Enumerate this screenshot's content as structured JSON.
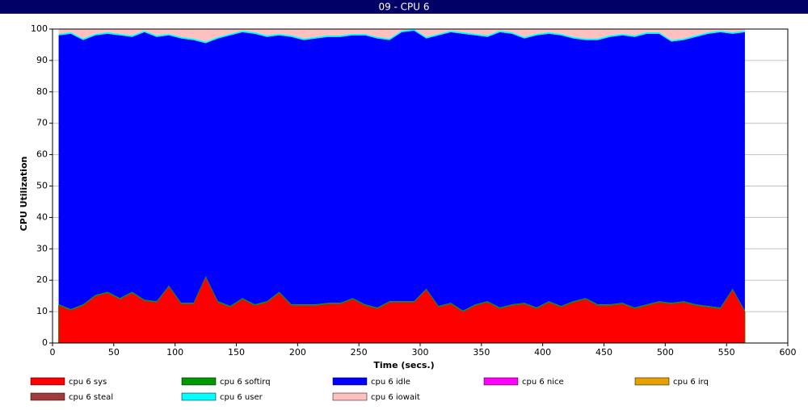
{
  "chart_data": {
    "type": "stacked-area",
    "title": "09 - CPU 6",
    "x_label": "Time (secs.)",
    "y_label": "CPU Utilization",
    "xlim": [
      0,
      600
    ],
    "xticks": [
      0,
      50,
      100,
      150,
      200,
      250,
      300,
      350,
      400,
      450,
      500,
      550,
      600
    ],
    "ylim": [
      0,
      100
    ],
    "yticks": [
      0,
      10,
      20,
      30,
      40,
      50,
      60,
      70,
      80,
      90,
      100
    ],
    "grid": true,
    "x": [
      5,
      15,
      25,
      35,
      45,
      55,
      65,
      75,
      85,
      95,
      105,
      115,
      125,
      135,
      145,
      155,
      165,
      175,
      185,
      195,
      205,
      215,
      225,
      235,
      245,
      255,
      265,
      275,
      285,
      295,
      305,
      315,
      325,
      335,
      345,
      355,
      365,
      375,
      385,
      395,
      405,
      415,
      425,
      435,
      445,
      455,
      465,
      475,
      485,
      495,
      505,
      515,
      525,
      535,
      545,
      555,
      565
    ],
    "series": [
      {
        "name": "cpu 6 sys",
        "color": "#ff0000",
        "values": [
          12,
          10.5,
          12,
          15,
          16,
          14,
          16,
          13.5,
          13,
          18,
          12.5,
          12.5,
          21,
          13,
          11.5,
          14,
          12,
          13,
          16,
          12,
          12,
          12,
          12.5,
          12.5,
          14,
          12,
          11,
          13,
          13,
          13,
          17,
          11.5,
          12.5,
          10,
          12,
          13,
          11,
          12,
          12.5,
          11,
          13,
          11.5,
          13,
          14,
          12,
          12,
          12.5,
          11,
          12,
          13,
          12.5,
          13,
          12,
          11.5,
          11,
          17,
          10
        ]
      },
      {
        "name": "cpu 6 softirq",
        "color": "#009900",
        "values": [
          0.3,
          0.3,
          0.3,
          0.3,
          0.3,
          0.3,
          0.3,
          0.3,
          0.3,
          0.3,
          0.3,
          0.3,
          0.3,
          0.3,
          0.3,
          0.3,
          0.3,
          0.3,
          0.3,
          0.3,
          0.3,
          0.3,
          0.3,
          0.3,
          0.3,
          0.3,
          0.3,
          0.3,
          0.3,
          0.3,
          0.3,
          0.3,
          0.3,
          0.3,
          0.3,
          0.3,
          0.3,
          0.3,
          0.3,
          0.3,
          0.3,
          0.3,
          0.3,
          0.3,
          0.3,
          0.3,
          0.3,
          0.3,
          0.3,
          0.3,
          0.3,
          0.3,
          0.3,
          0.3,
          0.3,
          0.3,
          0.3
        ]
      },
      {
        "name": "cpu 6 idle",
        "color": "#0000ff",
        "values": [
          85.7,
          87.7,
          84.2,
          82.7,
          82.2,
          83.7,
          81.2,
          85.2,
          84.2,
          79.7,
          84.2,
          83.7,
          74.2,
          83.7,
          86.2,
          84.7,
          86.2,
          84.2,
          81.7,
          85.2,
          84.2,
          84.7,
          84.7,
          84.7,
          83.7,
          85.7,
          85.7,
          83.2,
          85.7,
          86.2,
          79.7,
          86.2,
          86.2,
          88.2,
          85.7,
          84.2,
          87.7,
          86.2,
          84.2,
          86.7,
          85.2,
          86.2,
          83.7,
          82.2,
          84.2,
          85.2,
          85.2,
          86.2,
          86.2,
          85.2,
          83.2,
          83.2,
          85.2,
          86.7,
          87.7,
          81.2,
          88.7
        ]
      },
      {
        "name": "cpu 6 nice",
        "color": "#ff00ff",
        "values": [
          0,
          0,
          0,
          0,
          0,
          0,
          0,
          0,
          0,
          0,
          0,
          0,
          0,
          0,
          0,
          0,
          0,
          0,
          0,
          0,
          0,
          0,
          0,
          0,
          0,
          0,
          0,
          0,
          0,
          0,
          0,
          0,
          0,
          0,
          0,
          0,
          0,
          0,
          0,
          0,
          0,
          0,
          0,
          0,
          0,
          0,
          0,
          0,
          0,
          0,
          0,
          0,
          0,
          0,
          0,
          0,
          0
        ]
      },
      {
        "name": "cpu 6 irq",
        "color": "#e6a000",
        "values": [
          0,
          0,
          0,
          0,
          0,
          0,
          0,
          0,
          0,
          0,
          0,
          0,
          0,
          0,
          0,
          0,
          0,
          0,
          0,
          0,
          0,
          0,
          0,
          0,
          0,
          0,
          0,
          0,
          0,
          0,
          0,
          0,
          0,
          0,
          0,
          0,
          0,
          0,
          0,
          0,
          0,
          0,
          0,
          0,
          0,
          0,
          0,
          0,
          0,
          0,
          0,
          0,
          0,
          0,
          0,
          0,
          0
        ]
      },
      {
        "name": "cpu 6 steal",
        "color": "#a03c3c",
        "values": [
          0,
          0,
          0,
          0,
          0,
          0,
          0,
          0,
          0,
          0,
          0,
          0,
          0,
          0,
          0,
          0,
          0,
          0,
          0,
          0,
          0,
          0,
          0,
          0,
          0,
          0,
          0,
          0,
          0,
          0,
          0,
          0,
          0,
          0,
          0,
          0,
          0,
          0,
          0,
          0,
          0,
          0,
          0,
          0,
          0,
          0,
          0,
          0,
          0,
          0,
          0,
          0,
          0,
          0,
          0,
          0,
          0
        ]
      },
      {
        "name": "cpu 6 user",
        "color": "#00ffff",
        "values": [
          0.5,
          0.5,
          0.5,
          0.5,
          0.5,
          0.5,
          0.5,
          0.5,
          0.5,
          0.5,
          0.5,
          0.5,
          0.5,
          0.5,
          0.5,
          0.5,
          0.5,
          0.5,
          0.5,
          0.5,
          0.5,
          0.5,
          0.5,
          0.5,
          0.5,
          0.5,
          0.5,
          0.5,
          0.5,
          0.5,
          0.5,
          0.5,
          0.5,
          0.5,
          0.5,
          0.5,
          0.5,
          0.5,
          0.5,
          0.5,
          0.5,
          0.5,
          0.5,
          0.5,
          0.5,
          0.5,
          0.5,
          0.5,
          0.5,
          0.5,
          0.5,
          0.5,
          0.5,
          0.5,
          0.5,
          0.5,
          0.5
        ]
      },
      {
        "name": "cpu 6 iowait",
        "color": "#ffc0c0",
        "values": [
          1.5,
          1,
          3,
          1.5,
          1,
          1.5,
          2,
          0.5,
          2,
          1.5,
          2.5,
          3,
          4,
          2.5,
          1.5,
          0.5,
          1,
          2,
          1.5,
          2,
          3,
          2.5,
          2,
          2,
          1.5,
          1.5,
          2.5,
          3,
          0.5,
          0,
          2.5,
          1.5,
          0.5,
          1,
          1.5,
          2,
          0.5,
          1,
          2.5,
          1.5,
          1,
          1.5,
          2.5,
          3,
          3,
          2,
          1.5,
          2,
          1,
          1,
          3.5,
          3,
          2,
          1,
          0.5,
          1,
          0.5
        ]
      }
    ]
  }
}
